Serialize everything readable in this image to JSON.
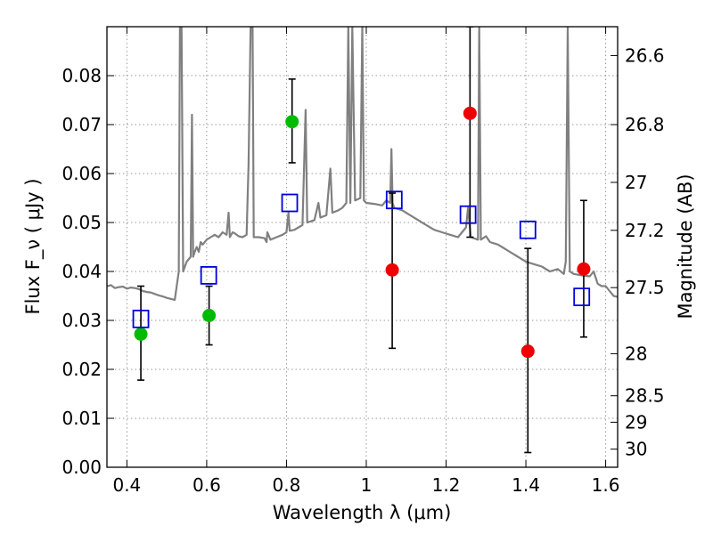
{
  "chart_data": {
    "type": "scatter",
    "xlabel": "Wavelength  λ (μm)",
    "ylabel": "Flux  F_ν  ( μJy )",
    "y2label": "Magnitude (AB)",
    "xlim": [
      0.35,
      1.63
    ],
    "ylim": [
      0.0,
      0.09
    ],
    "grid": true,
    "x_ticks": [
      0.4,
      0.6,
      0.8,
      1.0,
      1.2,
      1.4,
      1.6
    ],
    "x_tick_labels": [
      "0.4",
      "0.6",
      "0.8",
      "1",
      "1.2",
      "1.4",
      "1.6"
    ],
    "y_ticks": [
      0.0,
      0.01,
      0.02,
      0.03,
      0.04,
      0.05,
      0.06,
      0.07,
      0.08
    ],
    "y_tick_labels": [
      "0.00",
      "0.01",
      "0.02",
      "0.03",
      "0.04",
      "0.05",
      "0.06",
      "0.07",
      "0.08"
    ],
    "y2_ticks": [
      {
        "label": "26.6",
        "flux": 0.0841
      },
      {
        "label": "26.8",
        "flux": 0.07
      },
      {
        "label": "27",
        "flux": 0.0582
      },
      {
        "label": "27.2",
        "flux": 0.0484
      },
      {
        "label": "27.5",
        "flux": 0.0367
      },
      {
        "label": "28",
        "flux": 0.0232
      },
      {
        "label": "28.5",
        "flux": 0.0146
      },
      {
        "label": "29",
        "flux": 0.0092
      },
      {
        "label": "30",
        "flux": 0.0037
      }
    ],
    "colors": {
      "spectrum": "#808080",
      "detected": "#00bb00",
      "measured": "#ee0000",
      "model": "#0000dd",
      "errorbar": "#000000",
      "grid": "#9a9a9a"
    },
    "series": [
      {
        "kind": "spectrum",
        "points": [
          [
            0.35,
            0.037
          ],
          [
            0.36,
            0.0372
          ],
          [
            0.37,
            0.0366
          ],
          [
            0.38,
            0.0368
          ],
          [
            0.39,
            0.0369
          ],
          [
            0.4,
            0.0365
          ],
          [
            0.41,
            0.0367
          ],
          [
            0.42,
            0.0366
          ],
          [
            0.43,
            0.0364
          ],
          [
            0.44,
            0.036
          ],
          [
            0.45,
            0.0358
          ],
          [
            0.46,
            0.0357
          ],
          [
            0.47,
            0.0354
          ],
          [
            0.48,
            0.0351
          ],
          [
            0.49,
            0.0349
          ],
          [
            0.5,
            0.0346
          ],
          [
            0.51,
            0.0344
          ],
          [
            0.52,
            0.0342
          ],
          [
            0.53,
            0.04
          ],
          [
            0.533,
            0.09
          ],
          [
            0.537,
            0.09
          ],
          [
            0.541,
            0.04
          ],
          [
            0.55,
            0.042
          ],
          [
            0.56,
            0.043
          ],
          [
            0.563,
            0.072
          ],
          [
            0.566,
            0.043
          ],
          [
            0.57,
            0.044
          ],
          [
            0.575,
            0.045
          ],
          [
            0.58,
            0.044
          ],
          [
            0.585,
            0.046
          ],
          [
            0.59,
            0.0455
          ],
          [
            0.6,
            0.0465
          ],
          [
            0.61,
            0.047
          ],
          [
            0.62,
            0.0475
          ],
          [
            0.63,
            0.047
          ],
          [
            0.64,
            0.048
          ],
          [
            0.65,
            0.0475
          ],
          [
            0.655,
            0.052
          ],
          [
            0.658,
            0.047
          ],
          [
            0.665,
            0.048
          ],
          [
            0.67,
            0.0478
          ],
          [
            0.68,
            0.0472
          ],
          [
            0.69,
            0.047
          ],
          [
            0.7,
            0.0475
          ],
          [
            0.705,
            0.062
          ],
          [
            0.71,
            0.09
          ],
          [
            0.715,
            0.09
          ],
          [
            0.718,
            0.047
          ],
          [
            0.73,
            0.047
          ],
          [
            0.745,
            0.0468
          ],
          [
            0.75,
            0.046
          ],
          [
            0.752,
            0.048
          ],
          [
            0.76,
            0.0465
          ],
          [
            0.775,
            0.047
          ],
          [
            0.79,
            0.0475
          ],
          [
            0.8,
            0.048
          ],
          [
            0.805,
            0.052
          ],
          [
            0.808,
            0.0483
          ],
          [
            0.82,
            0.0485
          ],
          [
            0.83,
            0.049
          ],
          [
            0.84,
            0.0495
          ],
          [
            0.848,
            0.073
          ],
          [
            0.852,
            0.05
          ],
          [
            0.87,
            0.0505
          ],
          [
            0.88,
            0.054
          ],
          [
            0.885,
            0.051
          ],
          [
            0.9,
            0.0515
          ],
          [
            0.91,
            0.061
          ],
          [
            0.915,
            0.052
          ],
          [
            0.93,
            0.0525
          ],
          [
            0.94,
            0.053
          ],
          [
            0.95,
            0.054
          ],
          [
            0.955,
            0.09
          ],
          [
            0.96,
            0.054
          ],
          [
            0.965,
            0.09
          ],
          [
            0.972,
            0.0545
          ],
          [
            0.985,
            0.055
          ],
          [
            0.99,
            0.09
          ],
          [
            0.994,
            0.0545
          ],
          [
            1.0,
            0.054
          ],
          [
            1.02,
            0.0538
          ],
          [
            1.04,
            0.0535
          ],
          [
            1.05,
            0.0545
          ],
          [
            1.06,
            0.054
          ],
          [
            1.063,
            0.065
          ],
          [
            1.066,
            0.054
          ],
          [
            1.07,
            0.053
          ],
          [
            1.09,
            0.0525
          ],
          [
            1.11,
            0.0515
          ],
          [
            1.13,
            0.0505
          ],
          [
            1.15,
            0.0495
          ],
          [
            1.17,
            0.0485
          ],
          [
            1.19,
            0.048
          ],
          [
            1.21,
            0.0475
          ],
          [
            1.23,
            0.047
          ],
          [
            1.25,
            0.049
          ],
          [
            1.255,
            0.053
          ],
          [
            1.262,
            0.047
          ],
          [
            1.28,
            0.0465
          ],
          [
            1.283,
            0.09
          ],
          [
            1.287,
            0.0465
          ],
          [
            1.3,
            0.0472
          ],
          [
            1.31,
            0.046
          ],
          [
            1.33,
            0.0455
          ],
          [
            1.34,
            0.045
          ],
          [
            1.36,
            0.044
          ],
          [
            1.38,
            0.043
          ],
          [
            1.4,
            0.042
          ],
          [
            1.42,
            0.0415
          ],
          [
            1.44,
            0.041
          ],
          [
            1.46,
            0.04
          ],
          [
            1.48,
            0.0405
          ],
          [
            1.495,
            0.0395
          ],
          [
            1.5,
            0.042
          ],
          [
            1.505,
            0.09
          ],
          [
            1.51,
            0.04
          ],
          [
            1.52,
            0.0395
          ],
          [
            1.54,
            0.0392
          ],
          [
            1.56,
            0.039
          ],
          [
            1.57,
            0.04
          ],
          [
            1.58,
            0.0375
          ],
          [
            1.59,
            0.037
          ],
          [
            1.6,
            0.037
          ],
          [
            1.61,
            0.036
          ],
          [
            1.62,
            0.035
          ],
          [
            1.63,
            0.0348
          ]
        ]
      },
      {
        "kind": "detected",
        "points": [
          {
            "x": 0.435,
            "y": 0.0272,
            "err_low": 0.0178,
            "err_high": 0.037
          },
          {
            "x": 0.606,
            "y": 0.031,
            "err_low": 0.025,
            "err_high": 0.037
          },
          {
            "x": 0.814,
            "y": 0.0706,
            "err_low": 0.0622,
            "err_high": 0.0793
          }
        ]
      },
      {
        "kind": "measured",
        "points": [
          {
            "x": 1.065,
            "y": 0.0403,
            "err_low": 0.0243,
            "err_high": 0.056
          },
          {
            "x": 1.26,
            "y": 0.0723,
            "err_low": 0.047,
            "err_high": 0.09
          },
          {
            "x": 1.405,
            "y": 0.0237,
            "err_low": 0.003,
            "err_high": 0.0447
          },
          {
            "x": 1.545,
            "y": 0.0405,
            "err_low": 0.0266,
            "err_high": 0.0545
          }
        ]
      },
      {
        "kind": "model",
        "points": [
          {
            "x": 0.435,
            "y": 0.0303
          },
          {
            "x": 0.605,
            "y": 0.0392
          },
          {
            "x": 0.808,
            "y": 0.054
          },
          {
            "x": 1.07,
            "y": 0.0546
          },
          {
            "x": 1.255,
            "y": 0.0516
          },
          {
            "x": 1.405,
            "y": 0.0485
          },
          {
            "x": 1.54,
            "y": 0.0348
          }
        ]
      }
    ]
  }
}
